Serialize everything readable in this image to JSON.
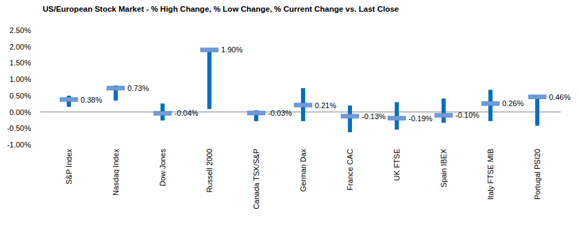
{
  "chart_data": {
    "type": "range",
    "title": "US/European Stock Market - % High Change, % Low Change, % Current Change vs. Last Close",
    "categories": [
      "S&P Index",
      "Nasdaq Index",
      "Dow Jones",
      "Russell 2000",
      "Canada TSX/S&P",
      "German Dax",
      "France CAC",
      "UK FTSE",
      "Spain IBEX",
      "Italy FTSE MIB",
      "Portugal PSI20"
    ],
    "series": [
      {
        "color": "#0070c0",
        "values": [
          0.5,
          0.81,
          0.26,
          1.91,
          0.05,
          0.73,
          0.2,
          0.3,
          0.41,
          0.68,
          0.48
        ]
      },
      {
        "color": "#0070c0",
        "values": [
          0.16,
          0.35,
          -0.26,
          0.09,
          -0.28,
          -0.28,
          -0.62,
          -0.54,
          -0.33,
          -0.28,
          -0.42
        ]
      },
      {
        "color": "#6f9bd8",
        "marker": "dash",
        "values": [
          0.38,
          0.73,
          -0.04,
          1.9,
          -0.03,
          0.21,
          -0.13,
          -0.19,
          -0.1,
          0.26,
          0.46
        ],
        "value_labels": [
          "0.38%",
          "0.73%",
          "-0.04%",
          "1.90%",
          "-0.03%",
          "0.21%",
          "-0.13%",
          "-0.19%",
          "-0.10%",
          "0.26%",
          "0.46%"
        ]
      }
    ],
    "ylim": [
      -1,
      2.5
    ],
    "yticks": [
      {
        "value": -1,
        "label": "-1.00%"
      },
      {
        "value": -0.5,
        "label": "-0.50%"
      },
      {
        "value": 0,
        "label": "0.00%"
      },
      {
        "value": 0.5,
        "label": "0.50%"
      },
      {
        "value": 1,
        "label": "1.00%"
      },
      {
        "value": 1.5,
        "label": "1.50%"
      },
      {
        "value": 2,
        "label": "2.00%"
      },
      {
        "value": 2.5,
        "label": "2.50%"
      }
    ],
    "grid": false,
    "data_labels": true
  }
}
